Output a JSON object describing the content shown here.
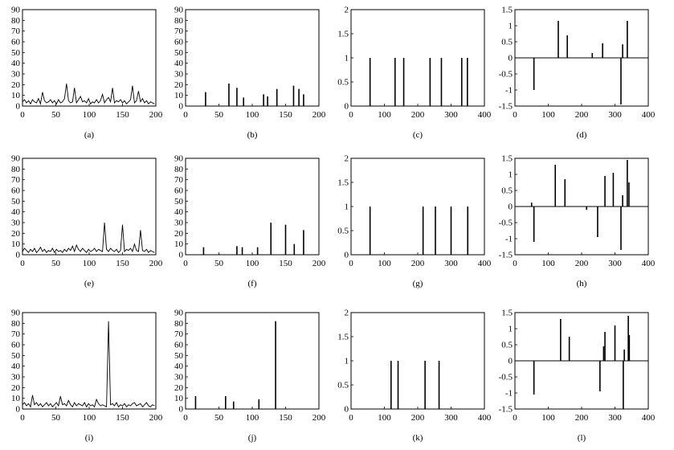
{
  "chart_data": [
    {
      "id": "a",
      "type": "line",
      "caption": "(a)",
      "xlim": [
        0,
        200
      ],
      "ylim": [
        0,
        90
      ],
      "xticks": [
        0,
        50,
        100,
        150,
        200
      ],
      "yticks": [
        0,
        10,
        20,
        30,
        40,
        50,
        60,
        70,
        80,
        90
      ],
      "x": [
        0,
        3,
        6,
        9,
        12,
        15,
        18,
        21,
        24,
        27,
        30,
        33,
        36,
        39,
        42,
        45,
        48,
        51,
        54,
        57,
        60,
        63,
        66,
        69,
        72,
        75,
        78,
        81,
        84,
        87,
        90,
        93,
        96,
        99,
        102,
        105,
        108,
        111,
        114,
        117,
        120,
        123,
        126,
        129,
        132,
        135,
        138,
        141,
        144,
        147,
        150,
        153,
        156,
        159,
        162,
        165,
        168,
        171,
        174,
        177,
        180,
        183,
        186,
        189,
        192,
        195,
        198
      ],
      "y": [
        4,
        6,
        3,
        5,
        2,
        6,
        4,
        3,
        7,
        2,
        13,
        5,
        3,
        4,
        6,
        3,
        5,
        2,
        6,
        3,
        4,
        7,
        21,
        5,
        3,
        4,
        17,
        3,
        6,
        9,
        4,
        5,
        3,
        7,
        2,
        4,
        3,
        6,
        3,
        5,
        11,
        3,
        6,
        8,
        4,
        17,
        3,
        5,
        4,
        6,
        3,
        5,
        2,
        4,
        6,
        19,
        3,
        5,
        14,
        4,
        7,
        3,
        5,
        2,
        4,
        3,
        2
      ]
    },
    {
      "id": "b",
      "type": "bar",
      "caption": "(b)",
      "xlim": [
        0,
        200
      ],
      "ylim": [
        0,
        90
      ],
      "xticks": [
        0,
        50,
        100,
        150,
        200
      ],
      "yticks": [
        0,
        10,
        20,
        30,
        40,
        50,
        60,
        70,
        80,
        90
      ],
      "x": [
        30,
        65,
        77,
        87,
        117,
        123,
        137,
        162,
        170,
        177
      ],
      "y": [
        13,
        21,
        17,
        8,
        11,
        9,
        16,
        19,
        16,
        11
      ]
    },
    {
      "id": "c",
      "type": "bar",
      "caption": "(c)",
      "xlim": [
        0,
        400
      ],
      "ylim": [
        0,
        2
      ],
      "xticks": [
        0,
        100,
        200,
        300,
        400
      ],
      "yticks": [
        0,
        0.5,
        1,
        1.5,
        2
      ],
      "x": [
        57,
        132,
        158,
        237,
        271,
        332,
        349
      ],
      "y": [
        1,
        1,
        1,
        1,
        1,
        1,
        1
      ]
    },
    {
      "id": "d",
      "type": "bar",
      "caption": "(d)",
      "xlim": [
        0,
        400
      ],
      "ylim": [
        -1.5,
        1.5
      ],
      "xticks": [
        0,
        100,
        200,
        300,
        400
      ],
      "yticks": [
        -1.5,
        -1,
        -0.5,
        0,
        0.5,
        1,
        1.5
      ],
      "zero_line": true,
      "x": [
        57,
        130,
        157,
        232,
        263,
        318,
        323,
        337
      ],
      "y": [
        -1.0,
        1.15,
        0.7,
        0.15,
        0.45,
        -1.45,
        0.42,
        1.15
      ]
    },
    {
      "id": "e",
      "type": "line",
      "caption": "(e)",
      "xlim": [
        0,
        200
      ],
      "ylim": [
        0,
        90
      ],
      "xticks": [
        0,
        50,
        100,
        150,
        200
      ],
      "yticks": [
        0,
        10,
        20,
        30,
        40,
        50,
        60,
        70,
        80,
        90
      ],
      "x": [
        0,
        3,
        6,
        9,
        12,
        15,
        18,
        21,
        24,
        27,
        30,
        33,
        36,
        39,
        42,
        45,
        48,
        51,
        54,
        57,
        60,
        63,
        66,
        69,
        72,
        75,
        78,
        81,
        84,
        87,
        90,
        93,
        96,
        99,
        102,
        105,
        108,
        111,
        114,
        117,
        120,
        123,
        126,
        129,
        132,
        135,
        138,
        141,
        144,
        147,
        150,
        153,
        156,
        159,
        162,
        165,
        168,
        171,
        174,
        177,
        180,
        183,
        186,
        189,
        192,
        195,
        198
      ],
      "y": [
        3,
        6,
        4,
        2,
        5,
        3,
        6,
        2,
        4,
        7,
        3,
        5,
        2,
        4,
        3,
        6,
        2,
        5,
        3,
        4,
        2,
        5,
        3,
        6,
        4,
        8,
        3,
        9,
        5,
        3,
        6,
        4,
        2,
        5,
        3,
        4,
        6,
        3,
        5,
        4,
        3,
        30,
        5,
        3,
        6,
        4,
        3,
        5,
        2,
        4,
        28,
        3,
        5,
        4,
        6,
        3,
        10,
        4,
        3,
        23,
        4,
        3,
        5,
        2,
        4,
        3,
        2
      ]
    },
    {
      "id": "f",
      "type": "bar",
      "caption": "(f)",
      "xlim": [
        0,
        200
      ],
      "ylim": [
        0,
        90
      ],
      "xticks": [
        0,
        50,
        100,
        150,
        200
      ],
      "yticks": [
        0,
        10,
        20,
        30,
        40,
        50,
        60,
        70,
        80,
        90
      ],
      "x": [
        27,
        77,
        85,
        108,
        128,
        150,
        163,
        177
      ],
      "y": [
        7,
        8,
        7,
        7,
        30,
        28,
        10,
        23
      ]
    },
    {
      "id": "g",
      "type": "bar",
      "caption": "(g)",
      "xlim": [
        0,
        400
      ],
      "ylim": [
        0,
        2
      ],
      "xticks": [
        0,
        100,
        200,
        300,
        400
      ],
      "yticks": [
        0,
        0.5,
        1,
        1.5,
        2
      ],
      "x": [
        57,
        216,
        253,
        300,
        350
      ],
      "y": [
        1,
        1,
        1,
        1,
        1
      ]
    },
    {
      "id": "h",
      "type": "bar",
      "caption": "(h)",
      "xlim": [
        0,
        400
      ],
      "ylim": [
        -1.5,
        1.5
      ],
      "xticks": [
        0,
        100,
        200,
        300,
        400
      ],
      "yticks": [
        -1.5,
        -1,
        -0.5,
        0,
        0.5,
        1,
        1.5
      ],
      "zero_line": true,
      "x": [
        50,
        57,
        121,
        150,
        215,
        248,
        270,
        295,
        318,
        323,
        337,
        342
      ],
      "y": [
        0.12,
        -1.1,
        1.3,
        0.85,
        -0.1,
        -0.95,
        0.95,
        1.05,
        -1.35,
        0.35,
        1.45,
        0.75
      ]
    },
    {
      "id": "i",
      "type": "line",
      "caption": "(i)",
      "xlim": [
        0,
        200
      ],
      "ylim": [
        0,
        90
      ],
      "xticks": [
        0,
        50,
        100,
        150,
        200
      ],
      "yticks": [
        0,
        10,
        20,
        30,
        40,
        50,
        60,
        70,
        80,
        90
      ],
      "x": [
        0,
        3,
        6,
        9,
        12,
        15,
        18,
        21,
        24,
        27,
        30,
        33,
        36,
        39,
        42,
        45,
        48,
        51,
        54,
        57,
        60,
        63,
        66,
        69,
        72,
        75,
        78,
        81,
        84,
        87,
        90,
        93,
        96,
        99,
        102,
        105,
        108,
        111,
        114,
        117,
        120,
        123,
        126,
        129,
        132,
        135,
        138,
        141,
        144,
        147,
        150,
        153,
        156,
        159,
        162,
        165,
        168,
        171,
        174,
        177,
        180,
        183,
        186,
        189,
        192,
        195,
        198
      ],
      "y": [
        4,
        6,
        3,
        5,
        2,
        13,
        4,
        6,
        3,
        5,
        2,
        4,
        6,
        3,
        5,
        2,
        4,
        6,
        3,
        12,
        4,
        5,
        3,
        8,
        4,
        2,
        6,
        3,
        5,
        4,
        3,
        6,
        2,
        5,
        3,
        4,
        2,
        9,
        5,
        3,
        4,
        3,
        2,
        82,
        4,
        5,
        3,
        6,
        2,
        4,
        3,
        5,
        2,
        4,
        3,
        5,
        6,
        3,
        4,
        5,
        2,
        4,
        6,
        3,
        2,
        4,
        3
      ]
    },
    {
      "id": "j",
      "type": "bar",
      "caption": "(j)",
      "xlim": [
        0,
        200
      ],
      "ylim": [
        0,
        90
      ],
      "xticks": [
        0,
        50,
        100,
        150,
        200
      ],
      "yticks": [
        0,
        10,
        20,
        30,
        40,
        50,
        60,
        70,
        80,
        90
      ],
      "x": [
        15,
        60,
        72,
        110,
        135
      ],
      "y": [
        12,
        12,
        7,
        9,
        82
      ]
    },
    {
      "id": "k",
      "type": "bar",
      "caption": "(k)",
      "xlim": [
        0,
        400
      ],
      "ylim": [
        0,
        2
      ],
      "xticks": [
        0,
        100,
        200,
        300,
        400
      ],
      "yticks": [
        0,
        0.5,
        1,
        1.5,
        2
      ],
      "x": [
        120,
        141,
        222,
        264
      ],
      "y": [
        1,
        1,
        1,
        1
      ]
    },
    {
      "id": "l",
      "type": "bar",
      "caption": "(l)",
      "xlim": [
        0,
        400
      ],
      "ylim": [
        -1.5,
        1.5
      ],
      "xticks": [
        0,
        100,
        200,
        300,
        400
      ],
      "yticks": [
        -1.5,
        -1,
        -0.5,
        0,
        0.5,
        1,
        1.5
      ],
      "zero_line": true,
      "x": [
        57,
        137,
        163,
        255,
        266,
        270,
        300,
        325,
        328,
        340,
        343
      ],
      "y": [
        -1.05,
        1.3,
        0.75,
        -0.95,
        0.45,
        0.9,
        1.1,
        -1.5,
        0.35,
        1.4,
        0.8
      ]
    }
  ]
}
